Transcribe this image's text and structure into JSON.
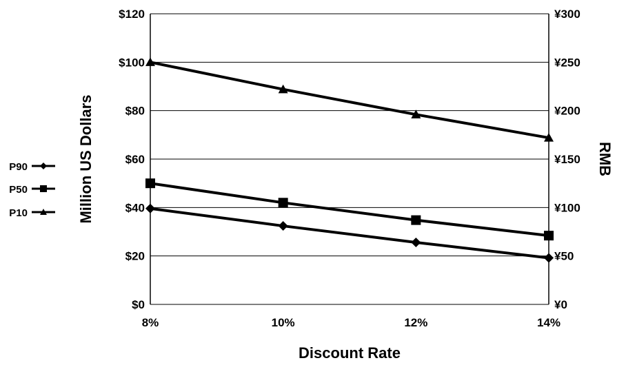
{
  "chart_data": {
    "type": "line",
    "mirrored": true,
    "xlabel": "Discount Rate",
    "ylabel_left": "RMB",
    "ylabel_right": "Million US Dollars",
    "categories": [
      "14%",
      "12%",
      "10%",
      "8%"
    ],
    "ylim_left": [
      0,
      300
    ],
    "ylim_right": [
      0,
      120
    ],
    "yticks_left": [
      "¥0",
      "¥50",
      "¥100",
      "¥150",
      "¥200",
      "¥250",
      "¥300"
    ],
    "yticks_right": [
      "$0",
      "$20",
      "$40",
      "$60",
      "$80",
      "$100",
      "$120"
    ],
    "grid": "horizontal",
    "legend_position": "left",
    "series": [
      {
        "name": "P90",
        "marker": "diamond",
        "values": [
          48,
          64,
          81,
          99
        ]
      },
      {
        "name": "P50",
        "marker": "square",
        "values": [
          71,
          87,
          105,
          125
        ]
      },
      {
        "name": "P10",
        "marker": "triangle",
        "values": [
          172,
          196,
          222,
          250
        ]
      }
    ]
  }
}
